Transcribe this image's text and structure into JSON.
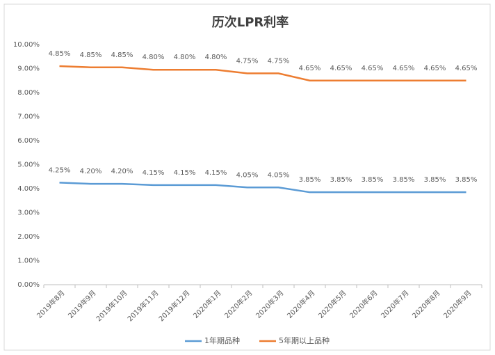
{
  "chart_data": {
    "type": "line",
    "title": "历次LPR利率",
    "stacked": true,
    "grid": false,
    "categories": [
      "2019年8月",
      "2019年9月",
      "2019年10月",
      "2019年11月",
      "2019年12月",
      "2020年1月",
      "2020年2月",
      "2020年3月",
      "2020年4月",
      "2020年5月",
      "2020年6月",
      "2020年7月",
      "2020年8月",
      "2020年9月"
    ],
    "series": [
      {
        "name": "1年期品种",
        "color": "#5b9bd5",
        "values": [
          4.25,
          4.2,
          4.2,
          4.15,
          4.15,
          4.15,
          4.05,
          4.05,
          3.85,
          3.85,
          3.85,
          3.85,
          3.85,
          3.85
        ],
        "value_labels": [
          "4.25%",
          "4.20%",
          "4.20%",
          "4.15%",
          "4.15%",
          "4.15%",
          "4.05%",
          "4.05%",
          "3.85%",
          "3.85%",
          "3.85%",
          "3.85%",
          "3.85%",
          "3.85%"
        ]
      },
      {
        "name": "5年期以上品种",
        "color": "#ed7d31",
        "values": [
          4.85,
          4.85,
          4.85,
          4.8,
          4.8,
          4.8,
          4.75,
          4.75,
          4.65,
          4.65,
          4.65,
          4.65,
          4.65,
          4.65
        ],
        "value_labels": [
          "4.85%",
          "4.85%",
          "4.85%",
          "4.80%",
          "4.80%",
          "4.80%",
          "4.75%",
          "4.75%",
          "4.65%",
          "4.65%",
          "4.65%",
          "4.65%",
          "4.65%",
          "4.65%"
        ]
      }
    ],
    "ylim": [
      0,
      10
    ],
    "yticks": [
      {
        "value": 0,
        "label": "0.00%"
      },
      {
        "value": 1,
        "label": "1.00%"
      },
      {
        "value": 2,
        "label": "2.00%"
      },
      {
        "value": 3,
        "label": "3.00%"
      },
      {
        "value": 4,
        "label": "4.00%"
      },
      {
        "value": 5,
        "label": "5.00%"
      },
      {
        "value": 6,
        "label": "6.00%"
      },
      {
        "value": 7,
        "label": "7.00%"
      },
      {
        "value": 8,
        "label": "8.00%"
      },
      {
        "value": 9,
        "label": "9.00%"
      },
      {
        "value": 10,
        "label": "10.00%"
      }
    ],
    "legend": "bottom"
  }
}
